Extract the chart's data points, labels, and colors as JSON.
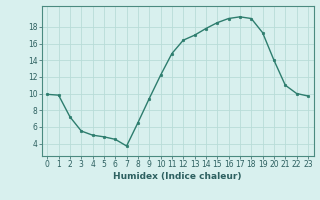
{
  "x": [
    0,
    1,
    2,
    3,
    4,
    5,
    6,
    7,
    8,
    9,
    10,
    11,
    12,
    13,
    14,
    15,
    16,
    17,
    18,
    19,
    20,
    21,
    22,
    23
  ],
  "y": [
    9.9,
    9.8,
    7.2,
    5.5,
    5.0,
    4.8,
    4.5,
    3.7,
    6.5,
    9.4,
    12.2,
    14.8,
    16.4,
    17.0,
    17.8,
    18.5,
    19.0,
    19.2,
    19.0,
    17.3,
    14.0,
    11.0,
    10.0,
    9.7
  ],
  "line_color": "#2d7d6e",
  "marker": "o",
  "marker_size": 1.8,
  "line_width": 1.0,
  "bg_color": "#d8f0ee",
  "grid_color": "#b8dcd8",
  "xlabel": "Humidex (Indice chaleur)",
  "xlabel_fontsize": 6.5,
  "xlabel_bold": true,
  "xlim": [
    -0.5,
    23.5
  ],
  "ylim": [
    2.5,
    20.5
  ],
  "yticks": [
    4,
    6,
    8,
    10,
    12,
    14,
    16,
    18
  ],
  "xticks": [
    0,
    1,
    2,
    3,
    4,
    5,
    6,
    7,
    8,
    9,
    10,
    11,
    12,
    13,
    14,
    15,
    16,
    17,
    18,
    19,
    20,
    21,
    22,
    23
  ],
  "tick_fontsize": 5.5
}
